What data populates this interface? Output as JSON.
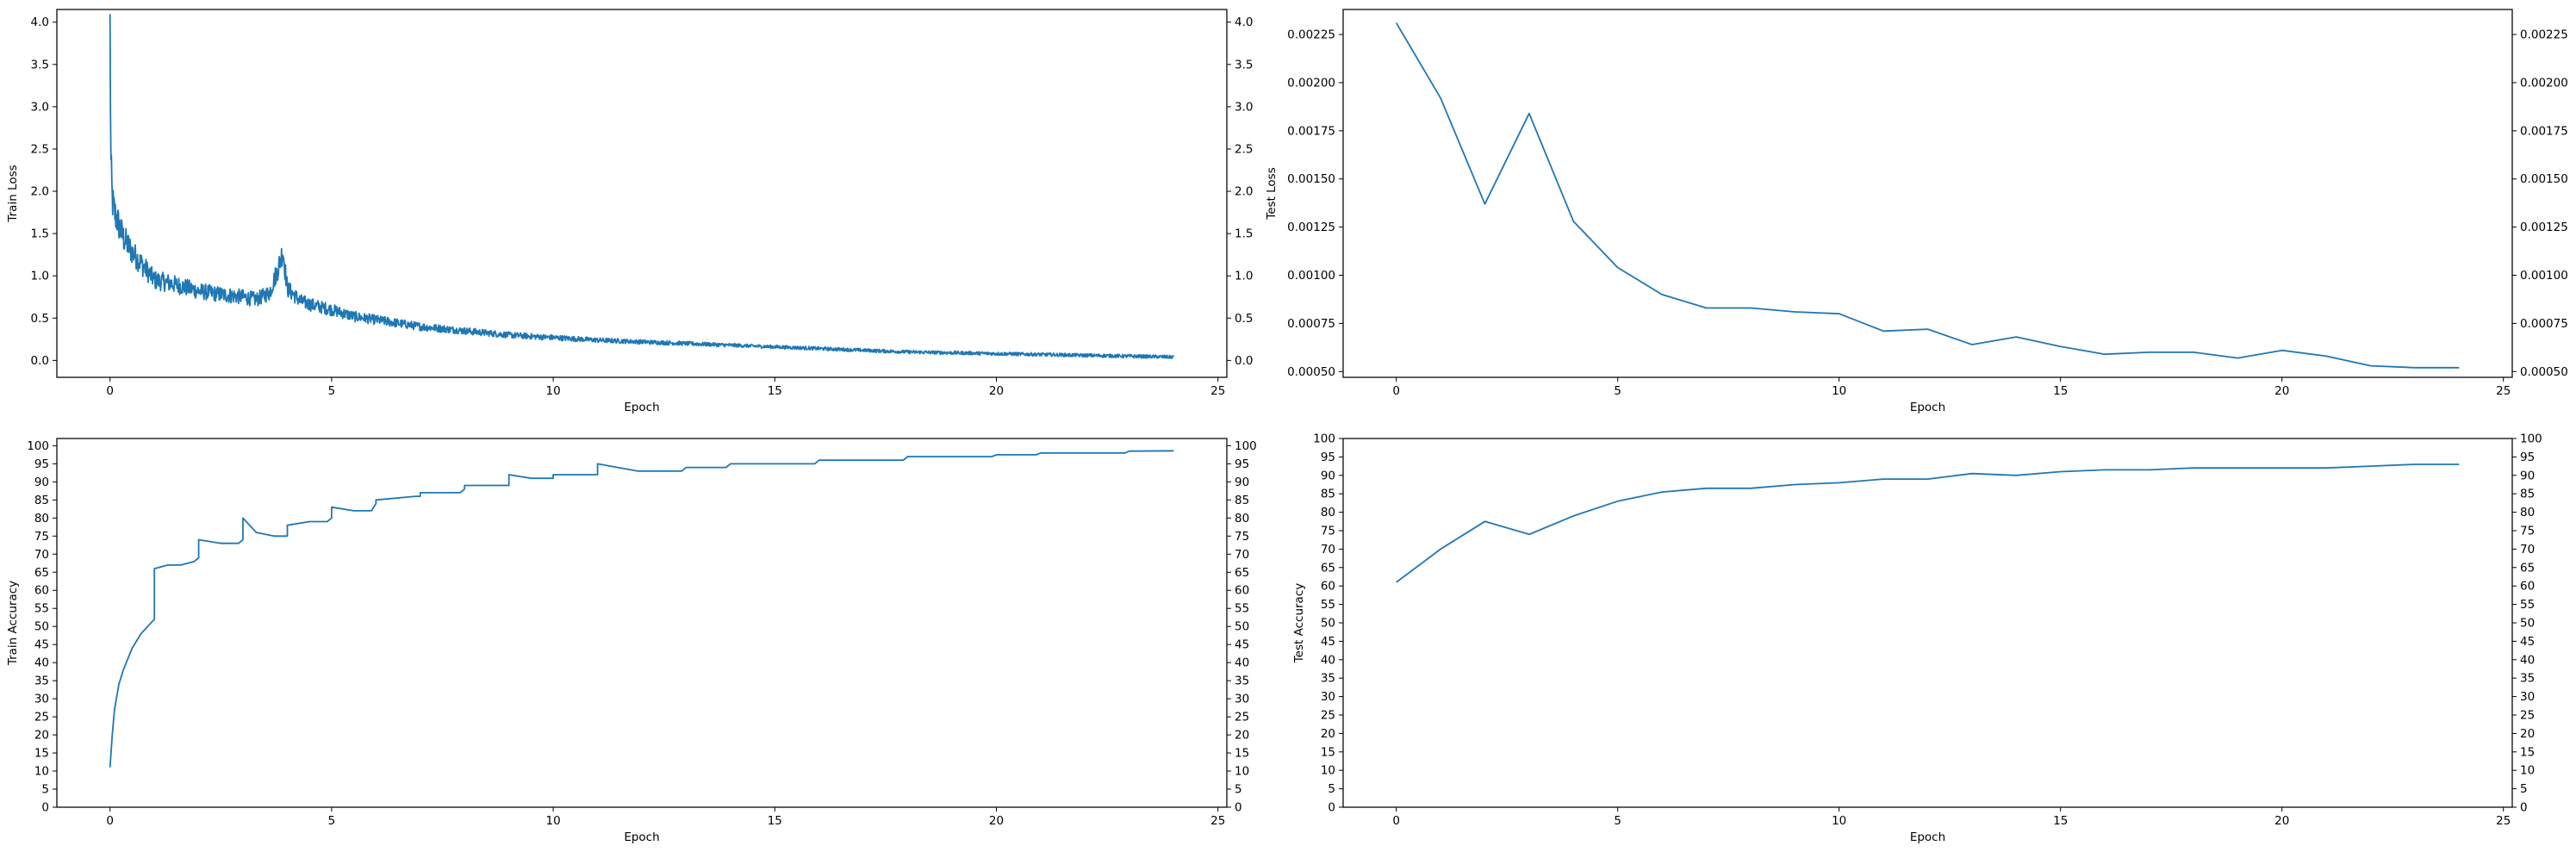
{
  "chart_data": [
    {
      "type": "line",
      "xlabel": "Epoch",
      "ylabel": "Train Loss",
      "xlim": [
        -1.2,
        25.2
      ],
      "ylim": [
        -0.2,
        4.15
      ],
      "xticks": [
        0,
        5,
        10,
        15,
        20,
        25
      ],
      "yticks": [
        0.0,
        0.5,
        1.0,
        1.5,
        2.0,
        2.5,
        3.0,
        3.5,
        4.0
      ],
      "ytick_decimals": 1,
      "dense": true,
      "grid": false,
      "series": [
        {
          "color": "#1f77b4",
          "x": [
            0.0,
            0.02,
            0.05,
            0.1,
            0.2,
            0.3,
            0.5,
            0.7,
            1.0,
            1.3,
            1.6,
            2.0,
            2.5,
            3.0,
            3.3,
            3.6,
            3.8,
            3.9,
            4.0,
            4.3,
            4.6,
            5.0,
            5.5,
            6.0,
            7.0,
            8.0,
            9.0,
            10.0,
            11.0,
            12.0,
            13.0,
            14.0,
            15.0,
            16.0,
            17.0,
            18.0,
            19.0,
            20.0,
            21.0,
            22.0,
            23.0,
            24.0
          ],
          "y": [
            3.95,
            2.3,
            1.9,
            1.75,
            1.6,
            1.45,
            1.28,
            1.15,
            0.95,
            0.92,
            0.88,
            0.82,
            0.78,
            0.75,
            0.72,
            0.8,
            1.1,
            1.3,
            0.85,
            0.7,
            0.65,
            0.6,
            0.52,
            0.48,
            0.4,
            0.35,
            0.3,
            0.27,
            0.24,
            0.22,
            0.2,
            0.18,
            0.16,
            0.14,
            0.12,
            0.1,
            0.09,
            0.08,
            0.07,
            0.06,
            0.05,
            0.04
          ]
        }
      ]
    },
    {
      "type": "line",
      "xlabel": "Epoch",
      "ylabel": "Test Loss",
      "xlim": [
        -1.2,
        25.2
      ],
      "ylim": [
        0.00047,
        0.00238
      ],
      "xticks": [
        0,
        5,
        10,
        15,
        20,
        25
      ],
      "yticks": [
        0.0005,
        0.00075,
        0.001,
        0.00125,
        0.0015,
        0.00175,
        0.002,
        0.00225
      ],
      "ytick_decimals": 5,
      "dense": false,
      "grid": false,
      "series": [
        {
          "color": "#1f77b4",
          "x": [
            0,
            1,
            2,
            3,
            4,
            5,
            6,
            7,
            8,
            9,
            10,
            11,
            12,
            13,
            14,
            15,
            16,
            17,
            18,
            19,
            20,
            21,
            22,
            23,
            24
          ],
          "y": [
            0.00231,
            0.00192,
            0.00137,
            0.00184,
            0.00128,
            0.00104,
            0.0009,
            0.00083,
            0.00083,
            0.00081,
            0.0008,
            0.00071,
            0.00072,
            0.00064,
            0.00068,
            0.00063,
            0.00059,
            0.0006,
            0.0006,
            0.00057,
            0.00061,
            0.00058,
            0.00053,
            0.00052,
            0.00052
          ]
        }
      ]
    },
    {
      "type": "line",
      "xlabel": "Epoch",
      "ylabel": "Train Accuracy",
      "xlim": [
        -1.2,
        25.2
      ],
      "ylim": [
        0,
        102
      ],
      "xticks": [
        0,
        5,
        10,
        15,
        20,
        25
      ],
      "yticks": [
        0,
        5,
        10,
        15,
        20,
        25,
        30,
        35,
        40,
        45,
        50,
        55,
        60,
        65,
        70,
        75,
        80,
        85,
        90,
        95,
        100
      ],
      "ytick_decimals": 0,
      "dense": false,
      "grid": false,
      "series": [
        {
          "color": "#1f77b4",
          "x": [
            0.0,
            0.05,
            0.1,
            0.2,
            0.3,
            0.5,
            0.7,
            1.0,
            1.0,
            1.3,
            1.6,
            1.9,
            2.0,
            2.0,
            2.5,
            2.9,
            3.0,
            3.0,
            3.3,
            3.7,
            4.0,
            4.0,
            4.5,
            4.9,
            5.0,
            5.0,
            5.5,
            5.9,
            6.0,
            6.0,
            6.9,
            7.0,
            7.0,
            7.9,
            8.0,
            8.0,
            8.9,
            9.0,
            9.0,
            9.5,
            9.9,
            10.0,
            10.0,
            10.9,
            11.0,
            11.0,
            11.9,
            12.0,
            12.9,
            13.0,
            13.9,
            14.0,
            14.9,
            15.0,
            15.9,
            16.0,
            16.9,
            17.0,
            17.9,
            18.0,
            18.9,
            19.0,
            19.9,
            20.0,
            20.9,
            21.0,
            21.9,
            22.0,
            22.9,
            23.0,
            24.0
          ],
          "y": [
            11,
            20,
            27,
            34,
            38,
            44,
            48,
            52,
            66,
            67,
            67,
            68,
            69,
            74,
            73,
            73,
            74,
            80,
            76,
            75,
            75,
            78,
            79,
            79,
            80,
            83,
            82,
            82,
            84,
            85,
            86,
            86,
            87,
            87,
            88,
            89,
            89,
            89,
            92,
            91,
            91,
            91,
            92,
            92,
            92,
            95,
            93,
            93,
            93,
            94,
            94,
            95,
            95,
            95,
            95,
            96,
            96,
            96,
            96,
            97,
            97,
            97,
            97,
            97.5,
            97.5,
            98,
            98,
            98,
            98,
            98.5,
            98.6
          ]
        }
      ]
    },
    {
      "type": "line",
      "xlabel": "Epoch",
      "ylabel": "Test Accuracy",
      "xlim": [
        -1.2,
        25.2
      ],
      "ylim": [
        0,
        100
      ],
      "xticks": [
        0,
        5,
        10,
        15,
        20,
        25
      ],
      "yticks": [
        0,
        5,
        10,
        15,
        20,
        25,
        30,
        35,
        40,
        45,
        50,
        55,
        60,
        65,
        70,
        75,
        80,
        85,
        90,
        95,
        100
      ],
      "ytick_decimals": 0,
      "dense": false,
      "grid": false,
      "series": [
        {
          "color": "#1f77b4",
          "x": [
            0,
            1,
            2,
            3,
            4,
            5,
            6,
            7,
            8,
            9,
            10,
            11,
            12,
            13,
            14,
            15,
            16,
            17,
            18,
            19,
            20,
            21,
            22,
            23,
            24
          ],
          "y": [
            61,
            70,
            77.5,
            74,
            79,
            83,
            85.5,
            86.5,
            86.5,
            87.5,
            88,
            89,
            89,
            90.5,
            90,
            91,
            91.5,
            91.5,
            92,
            92,
            92,
            92,
            92.5,
            93,
            93
          ]
        }
      ]
    }
  ]
}
